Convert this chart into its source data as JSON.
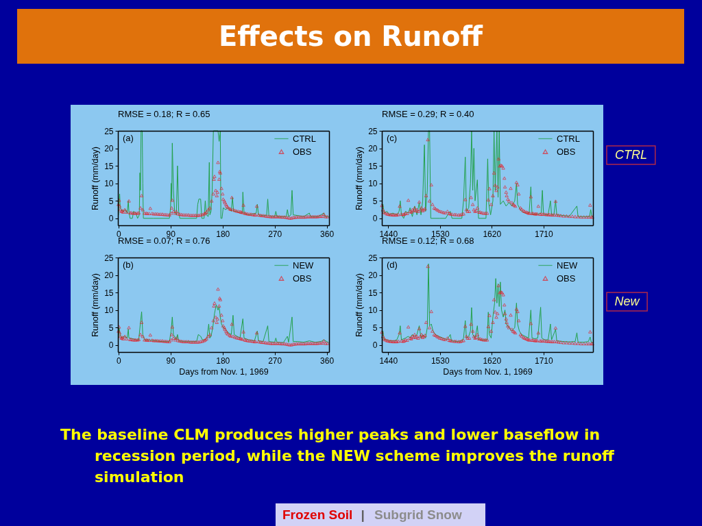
{
  "chart_data": [
    {
      "type": "line",
      "title": "RMSE = 0.18; R = 0.65",
      "ylabel": "Runoff (mm/day)",
      "annotations": [
        "(a)"
      ],
      "xlim": [
        -1,
        364
      ],
      "xticks": [
        0,
        90,
        180,
        270,
        360
      ],
      "ylim": [
        -2,
        25
      ],
      "yticks": [
        0,
        5,
        10,
        15,
        20,
        25
      ],
      "legend": "top right",
      "series": [
        {
          "name": "CTRL",
          "type": "line",
          "color": "#22a04a",
          "x": [
            0,
            1,
            2,
            3,
            5,
            8,
            12,
            15,
            17,
            18,
            20,
            24,
            26,
            30,
            33,
            36,
            37,
            38,
            39,
            41,
            42,
            43,
            60,
            88,
            90,
            91,
            92,
            93,
            95,
            97,
            100,
            102,
            104,
            106,
            135,
            137,
            139,
            142,
            144,
            148,
            150,
            152,
            155,
            157,
            158,
            160,
            162,
            164,
            172,
            174,
            176,
            177,
            179,
            181,
            185,
            190,
            195,
            197,
            199,
            205,
            210,
            214,
            215,
            217,
            225,
            238,
            240,
            242,
            250,
            256,
            258,
            260,
            270,
            272,
            274,
            285,
            290,
            292,
            294,
            298,
            300,
            302,
            310,
            320,
            330,
            332,
            345,
            355,
            357,
            363
          ],
          "values": [
            1,
            5,
            7,
            3,
            2.5,
            2,
            2.5,
            1.5,
            5,
            2,
            0,
            0,
            2,
            1.5,
            0,
            1,
            13,
            8,
            25,
            25,
            10,
            0,
            0,
            0,
            3,
            10,
            5,
            21.5,
            8,
            2,
            1,
            15,
            2,
            0,
            0,
            4,
            5.5,
            5.5,
            0,
            0,
            5,
            1,
            0.5,
            16,
            1,
            2,
            8,
            25,
            25,
            22,
            25,
            0,
            0,
            3,
            2.5,
            3,
            2,
            6,
            2,
            2,
            1.5,
            1.5,
            7.5,
            1.5,
            1,
            1.5,
            4,
            1,
            0.8,
            0.8,
            5.5,
            0.7,
            0.5,
            2,
            0.5,
            0.5,
            0.5,
            2.5,
            0.5,
            1,
            8,
            1,
            0.8,
            0.5,
            1.5,
            0.5,
            0.5,
            1.5,
            0.5,
            0.5
          ]
        },
        {
          "name": "OBS",
          "type": "scatter",
          "marker": "triangle",
          "color": "#e4202a",
          "x": [
            0,
            1,
            2,
            3,
            5,
            7,
            8,
            11,
            14,
            18,
            20,
            22,
            25,
            28,
            30,
            33,
            35,
            38,
            40,
            42,
            45,
            48,
            50,
            53,
            55,
            58,
            61,
            64,
            67,
            70,
            73,
            76,
            79,
            82,
            85,
            88,
            91,
            92,
            93,
            95,
            98,
            100,
            103,
            106,
            109,
            112,
            115,
            118,
            121,
            124,
            127,
            130,
            133,
            136,
            139,
            142,
            145,
            148,
            150,
            152,
            155,
            158,
            161,
            164,
            165,
            166,
            168,
            170,
            171,
            172,
            174,
            175,
            176,
            178,
            180,
            181,
            183,
            184,
            186,
            187,
            189,
            192,
            194,
            196,
            198,
            201,
            204,
            207,
            210,
            212,
            214,
            216,
            218,
            220,
            223,
            226,
            229,
            232,
            235,
            237,
            239,
            242,
            245,
            248,
            251,
            254,
            257,
            260,
            263,
            266,
            269,
            272,
            275,
            278,
            281,
            284,
            287,
            290,
            293,
            296,
            299,
            302,
            305,
            308,
            311,
            314,
            317,
            320,
            323,
            326,
            329,
            332,
            335,
            338,
            341,
            344,
            347,
            350,
            353,
            355,
            358,
            361
          ],
          "values": [
            4,
            5.2,
            3.5,
            2.5,
            2,
            2.2,
            1.8,
            2.5,
            1.8,
            5,
            1.6,
            1.6,
            1.5,
            1.5,
            1.5,
            1.5,
            1.6,
            3,
            6.5,
            2.5,
            1.5,
            1.5,
            1.4,
            1.4,
            2.9,
            1.4,
            1.3,
            1.3,
            1.3,
            1.2,
            1.2,
            1.2,
            1.1,
            1.1,
            1,
            1,
            1.5,
            3,
            5.2,
            2,
            1.5,
            2,
            1.3,
            1.2,
            1.1,
            1,
            1,
            1,
            1,
            0.9,
            0.9,
            0.9,
            0.9,
            0.9,
            0.9,
            1,
            1.1,
            1.3,
            1.5,
            1.8,
            2.5,
            3,
            5,
            7,
            11.2,
            12,
            8,
            6.5,
            7.5,
            16,
            11.2,
            13.4,
            13,
            8.6,
            7,
            5.5,
            5,
            4.5,
            4,
            3.5,
            3.2,
            2.8,
            2.6,
            6,
            2.5,
            2.3,
            2.1,
            2,
            1.9,
            1.8,
            1.7,
            3.8,
            1.5,
            1.4,
            1.3,
            1.2,
            1.2,
            1.1,
            1,
            1,
            3.5,
            1,
            0.9,
            0.8,
            0.8,
            0.7,
            0.6,
            0.6,
            0.5,
            0.5,
            0.5,
            0.5,
            0.5,
            0.5,
            0.4,
            0.4,
            0.4,
            0.3,
            0.2,
            0.1,
            0.1,
            0.3,
            0.3,
            0.4,
            0.4,
            0.4,
            0.4,
            0.4,
            0.4,
            0.5,
            0.5,
            0.5,
            0.5,
            0.5,
            0.5,
            0.5,
            0.6,
            0.6,
            0.6,
            1.2,
            0.5,
            0.5
          ]
        }
      ]
    },
    {
      "type": "line",
      "title": "RMSE = 0.29; R = 0.40",
      "ylabel": "Runoff (mm/day)",
      "annotations": [
        "(c)"
      ],
      "xlim": [
        1429,
        1796
      ],
      "xticks": [
        1440,
        1530,
        1620,
        1710
      ],
      "ylim": [
        -2,
        25
      ],
      "yticks": [
        0,
        5,
        10,
        15,
        20,
        25
      ],
      "legend": "top right",
      "series": [
        {
          "name": "CTRL",
          "type": "line",
          "color": "#22a04a",
          "x": [
            1429,
            1431,
            1433,
            1438,
            1442,
            1448,
            1455,
            1459,
            1461,
            1463,
            1467,
            1470,
            1475,
            1478,
            1482,
            1486,
            1490,
            1494,
            1497,
            1500,
            1503,
            1505,
            1508,
            1510,
            1512,
            1514,
            1530,
            1540,
            1545,
            1548,
            1551,
            1568,
            1571,
            1574,
            1576,
            1580,
            1583,
            1585,
            1587,
            1589,
            1591,
            1595,
            1597,
            1610,
            1613,
            1615,
            1618,
            1622,
            1624,
            1626,
            1629,
            1631,
            1633,
            1635,
            1640,
            1645,
            1650,
            1655,
            1660,
            1663,
            1665,
            1668,
            1672,
            1678,
            1685,
            1688,
            1690,
            1700,
            1706,
            1708,
            1710,
            1718,
            1722,
            1724,
            1728,
            1731,
            1733,
            1745,
            1755,
            1768,
            1770,
            1780,
            1790,
            1792,
            1794,
            1796
          ],
          "values": [
            2,
            4,
            1.5,
            2,
            1,
            1.5,
            1,
            2,
            5,
            1,
            0,
            2,
            1.5,
            3,
            0.5,
            3.5,
            1,
            4.5,
            1,
            5,
            21,
            2,
            8,
            25,
            25,
            0,
            0,
            0,
            1.5,
            2,
            0,
            0,
            5,
            17.5,
            2,
            3,
            10,
            25,
            8,
            20,
            5,
            11,
            0,
            0,
            17,
            4,
            1,
            5,
            25,
            8,
            25,
            6,
            25,
            4,
            5,
            3.5,
            4.5,
            3.5,
            5,
            10,
            4,
            3,
            2,
            1.5,
            1.5,
            9,
            1.2,
            1.2,
            1.5,
            8,
            1.2,
            1,
            5,
            1,
            1,
            5,
            1,
            0.8,
            0.6,
            3.5,
            0.5,
            0.5,
            0.5,
            2.5,
            0.5,
            0.5
          ]
        },
        {
          "name": "OBS",
          "type": "scatter",
          "marker": "triangle",
          "color": "#e4202a",
          "x": [
            1429,
            1431,
            1433,
            1435,
            1438,
            1440,
            1443,
            1445,
            1448,
            1450,
            1453,
            1455,
            1458,
            1460,
            1463,
            1466,
            1468,
            1470,
            1473,
            1475,
            1478,
            1480,
            1482,
            1484,
            1486,
            1488,
            1490,
            1492,
            1494,
            1496,
            1498,
            1500,
            1502,
            1504,
            1506,
            1509,
            1512,
            1515,
            1517,
            1520,
            1522,
            1525,
            1527,
            1530,
            1533,
            1536,
            1539,
            1543,
            1546,
            1548,
            1551,
            1555,
            1558,
            1562,
            1565,
            1568,
            1571,
            1574,
            1576,
            1578,
            1581,
            1584,
            1587,
            1589,
            1591,
            1593,
            1595,
            1598,
            1600,
            1603,
            1606,
            1609,
            1612,
            1614,
            1616,
            1619,
            1622,
            1624,
            1626,
            1628,
            1630,
            1632,
            1634,
            1636,
            1638,
            1640,
            1642,
            1643,
            1645,
            1646,
            1648,
            1650,
            1653,
            1655,
            1657,
            1659,
            1661,
            1663,
            1665,
            1667,
            1670,
            1672,
            1675,
            1677,
            1680,
            1682,
            1684,
            1686,
            1688,
            1690,
            1692,
            1695,
            1697,
            1699,
            1701,
            1704,
            1706,
            1709,
            1712,
            1715,
            1718,
            1720,
            1723,
            1726,
            1729,
            1731,
            1733,
            1736,
            1740,
            1745,
            1750,
            1755,
            1760,
            1765,
            1770,
            1775,
            1780,
            1785,
            1789,
            1791,
            1793,
            1795
          ],
          "values": [
            3.7,
            2.5,
            1.8,
            1.5,
            1.3,
            1.2,
            1.1,
            1.1,
            1,
            1,
            1,
            1,
            1.1,
            3.5,
            1.2,
            1.1,
            1.2,
            1.5,
            1.4,
            5.2,
            2,
            1.8,
            2.5,
            2.2,
            3,
            2.2,
            2.5,
            2,
            4.7,
            2.5,
            3,
            2.2,
            2.5,
            2.8,
            6.5,
            22.5,
            5,
            9.6,
            4,
            3,
            2.8,
            2.5,
            2.3,
            2,
            1.9,
            1.7,
            1.6,
            2,
            1.4,
            1.3,
            1.2,
            1.1,
            1.1,
            1,
            1,
            1.2,
            1.3,
            5.4,
            2.5,
            2,
            2,
            6,
            4,
            2.5,
            2,
            2.2,
            3,
            1.8,
            1.8,
            1.6,
            1.5,
            1.5,
            1.5,
            5.3,
            8.5,
            4,
            6.5,
            13,
            9.5,
            8,
            9,
            17,
            15,
            15.2,
            15,
            14.4,
            11.5,
            9,
            7.5,
            6.5,
            5.5,
            5,
            8.6,
            4.5,
            4,
            3.8,
            3.5,
            10.3,
            9.6,
            7,
            3,
            2.6,
            2.2,
            2,
            1.8,
            1.7,
            1.5,
            1.5,
            6.2,
            1.4,
            1.4,
            1.3,
            1.3,
            1.3,
            3.5,
            1.2,
            1.2,
            1.2,
            1.2,
            1.1,
            1.1,
            1.1,
            1,
            1,
            1,
            4.9,
            1,
            0.9,
            0.8,
            0.7,
            0.7,
            0.6,
            0.6,
            0.5,
            0.5,
            0.4,
            0.4,
            0.4,
            0.4,
            3.8,
            0.4,
            0.4
          ]
        }
      ]
    },
    {
      "type": "line",
      "title": "RMSE = 0.07; R = 0.76",
      "xlabel": "Days from Nov. 1, 1969",
      "ylabel": "Runoff (mm/day)",
      "annotations": [
        "(b)"
      ],
      "xlim": [
        -1,
        364
      ],
      "xticks": [
        0,
        90,
        180,
        270,
        360
      ],
      "ylim": [
        -2,
        25
      ],
      "yticks": [
        0,
        5,
        10,
        15,
        20,
        25
      ],
      "legend": "top right",
      "series": [
        {
          "name": "NEW",
          "type": "line",
          "color": "#22a04a",
          "x": [
            0,
            1,
            3,
            5,
            10,
            15,
            17,
            18,
            25,
            30,
            35,
            38,
            40,
            42,
            45,
            55,
            65,
            75,
            88,
            91,
            93,
            95,
            100,
            102,
            104,
            115,
            125,
            135,
            138,
            142,
            145,
            150,
            153,
            156,
            158,
            160,
            163,
            166,
            169,
            172,
            174,
            176,
            178,
            181,
            185,
            190,
            195,
            198,
            200,
            205,
            210,
            215,
            217,
            225,
            235,
            240,
            242,
            250,
            258,
            260,
            270,
            272,
            274,
            285,
            292,
            294,
            300,
            302,
            310,
            320,
            330,
            340,
            350,
            355,
            363
          ],
          "values": [
            2,
            5,
            3,
            2,
            2.5,
            2,
            4.5,
            2,
            1.8,
            1.5,
            1.5,
            6.5,
            9.5,
            3,
            1.5,
            1.4,
            1.2,
            1,
            1,
            4,
            8,
            3,
            1.5,
            3,
            1.2,
            1,
            1,
            1,
            3,
            2.5,
            1.5,
            1.5,
            2,
            6,
            2,
            2.5,
            5,
            9,
            11.5,
            10,
            11,
            8,
            6,
            5,
            4.5,
            3.5,
            3,
            8.5,
            3,
            2.5,
            2,
            7.5,
            2,
            1.5,
            1.2,
            4,
            1.2,
            1,
            5.5,
            1,
            0.8,
            2,
            0.8,
            0.7,
            2.5,
            0.8,
            8,
            1,
            1,
            0.8,
            1.2,
            0.8,
            1,
            1.5,
            0.7
          ]
        },
        {
          "name": "OBS",
          "type": "scatter",
          "marker": "triangle",
          "color": "#e4202a",
          "x": [
            0,
            1,
            2,
            3,
            5,
            7,
            8,
            11,
            14,
            18,
            20,
            22,
            25,
            28,
            30,
            33,
            35,
            38,
            40,
            42,
            45,
            48,
            50,
            53,
            55,
            58,
            61,
            64,
            67,
            70,
            73,
            76,
            79,
            82,
            85,
            88,
            91,
            92,
            93,
            95,
            98,
            100,
            103,
            106,
            109,
            112,
            115,
            118,
            121,
            124,
            127,
            130,
            133,
            136,
            139,
            142,
            145,
            148,
            150,
            152,
            155,
            158,
            161,
            164,
            165,
            166,
            168,
            170,
            171,
            172,
            174,
            175,
            176,
            178,
            180,
            181,
            183,
            184,
            186,
            187,
            189,
            192,
            194,
            196,
            198,
            201,
            204,
            207,
            210,
            212,
            214,
            216,
            218,
            220,
            223,
            226,
            229,
            232,
            235,
            237,
            239,
            242,
            245,
            248,
            251,
            254,
            257,
            260,
            263,
            266,
            269,
            272,
            275,
            278,
            281,
            284,
            287,
            290,
            293,
            296,
            299,
            302,
            305,
            308,
            311,
            314,
            317,
            320,
            323,
            326,
            329,
            332,
            335,
            338,
            341,
            344,
            347,
            350,
            353,
            355,
            358,
            361
          ],
          "values": [
            4,
            5.2,
            3.5,
            2.5,
            2,
            2.2,
            1.8,
            2.5,
            1.8,
            5,
            1.6,
            1.6,
            1.5,
            1.5,
            1.5,
            1.5,
            1.6,
            3,
            6.5,
            2.5,
            1.5,
            1.5,
            1.4,
            1.4,
            2.9,
            1.4,
            1.3,
            1.3,
            1.3,
            1.2,
            1.2,
            1.2,
            1.1,
            1.1,
            1,
            1,
            1.5,
            3,
            5.2,
            2,
            1.5,
            2,
            1.3,
            1.2,
            1.1,
            1,
            1,
            1,
            1,
            0.9,
            0.9,
            0.9,
            0.9,
            0.9,
            0.9,
            1,
            1.1,
            1.3,
            1.5,
            1.8,
            2.5,
            3,
            5,
            7,
            11.2,
            12,
            8,
            6.5,
            7.5,
            16,
            11.2,
            13.4,
            13,
            8.6,
            7,
            5.5,
            5,
            4.5,
            4,
            3.5,
            3.2,
            2.8,
            2.6,
            6,
            2.5,
            2.3,
            2.1,
            2,
            1.9,
            1.8,
            1.7,
            3.8,
            1.5,
            1.4,
            1.3,
            1.2,
            1.2,
            1.1,
            1,
            1,
            3.5,
            1,
            0.9,
            0.8,
            0.8,
            0.7,
            0.6,
            0.6,
            0.5,
            0.5,
            0.5,
            0.5,
            0.5,
            0.5,
            0.4,
            0.4,
            0.4,
            0.3,
            0.2,
            0.1,
            0.1,
            0.3,
            0.3,
            0.4,
            0.4,
            0.4,
            0.4,
            0.4,
            0.4,
            0.5,
            0.5,
            0.5,
            0.5,
            0.5,
            0.5,
            0.5,
            0.6,
            0.6,
            0.6,
            1.2,
            0.5,
            0.5
          ]
        }
      ]
    },
    {
      "type": "line",
      "title": "RMSE = 0.12; R = 0.68",
      "xlabel": "Days from Nov. 1, 1969",
      "ylabel": "Runoff (mm/day)",
      "annotations": [
        "(d)"
      ],
      "xlim": [
        1429,
        1796
      ],
      "xticks": [
        1440,
        1530,
        1620,
        1710
      ],
      "ylim": [
        -2,
        25
      ],
      "yticks": [
        0,
        5,
        10,
        15,
        20,
        25
      ],
      "legend": "top right",
      "series": [
        {
          "name": "NEW",
          "type": "line",
          "color": "#22a04a",
          "x": [
            1429,
            1431,
            1433,
            1438,
            1442,
            1450,
            1455,
            1459,
            1461,
            1463,
            1470,
            1475,
            1478,
            1482,
            1486,
            1490,
            1494,
            1497,
            1500,
            1505,
            1508,
            1510,
            1512,
            1515,
            1518,
            1522,
            1528,
            1535,
            1542,
            1548,
            1550,
            1560,
            1568,
            1571,
            1574,
            1576,
            1580,
            1583,
            1585,
            1587,
            1591,
            1595,
            1597,
            1605,
            1612,
            1614,
            1616,
            1619,
            1622,
            1625,
            1627,
            1629,
            1631,
            1633,
            1635,
            1637,
            1640,
            1643,
            1645,
            1650,
            1655,
            1660,
            1663,
            1665,
            1668,
            1672,
            1678,
            1684,
            1688,
            1690,
            1695,
            1700,
            1705,
            1707,
            1712,
            1718,
            1722,
            1724,
            1731,
            1733,
            1745,
            1755,
            1765,
            1768,
            1770,
            1780,
            1788,
            1791,
            1793,
            1796
          ],
          "values": [
            2,
            4,
            1.5,
            1.5,
            1.2,
            1.2,
            1.5,
            3,
            5.5,
            1.5,
            2,
            2.5,
            2,
            3,
            2.5,
            3,
            5.5,
            2,
            3,
            2,
            5,
            23.2,
            5.5,
            6,
            4,
            3,
            2.5,
            2,
            1.5,
            3,
            1.2,
            1,
            1.2,
            2,
            7,
            2,
            2.5,
            4,
            10.7,
            3,
            2,
            5.5,
            1.5,
            1.5,
            1.5,
            9.4,
            3,
            2,
            8,
            12,
            19,
            12,
            17.5,
            11,
            18,
            10,
            8,
            10,
            6,
            5,
            4,
            5,
            12,
            6,
            4,
            3,
            2.5,
            2,
            10,
            2,
            1.8,
            2,
            10.8,
            2,
            1.5,
            1.5,
            6,
            1.5,
            4.5,
            1.2,
            1,
            0.9,
            1,
            3.5,
            0.8,
            0.8,
            1,
            2.3,
            0.8,
            0.7
          ]
        },
        {
          "name": "OBS",
          "type": "scatter",
          "marker": "triangle",
          "color": "#e4202a",
          "x": [
            1429,
            1431,
            1433,
            1435,
            1438,
            1440,
            1443,
            1445,
            1448,
            1450,
            1453,
            1455,
            1458,
            1460,
            1463,
            1466,
            1468,
            1470,
            1473,
            1475,
            1478,
            1480,
            1482,
            1484,
            1486,
            1488,
            1490,
            1492,
            1494,
            1496,
            1498,
            1500,
            1502,
            1504,
            1506,
            1509,
            1512,
            1515,
            1517,
            1520,
            1522,
            1525,
            1527,
            1530,
            1533,
            1536,
            1539,
            1543,
            1546,
            1548,
            1551,
            1555,
            1558,
            1562,
            1565,
            1568,
            1571,
            1574,
            1576,
            1578,
            1581,
            1584,
            1587,
            1589,
            1591,
            1593,
            1595,
            1598,
            1600,
            1603,
            1606,
            1609,
            1612,
            1614,
            1616,
            1619,
            1622,
            1624,
            1626,
            1628,
            1630,
            1632,
            1634,
            1636,
            1638,
            1640,
            1642,
            1643,
            1645,
            1646,
            1648,
            1650,
            1653,
            1655,
            1657,
            1659,
            1661,
            1663,
            1665,
            1667,
            1670,
            1672,
            1675,
            1677,
            1680,
            1682,
            1684,
            1686,
            1688,
            1690,
            1692,
            1695,
            1697,
            1699,
            1701,
            1704,
            1706,
            1709,
            1712,
            1715,
            1718,
            1720,
            1723,
            1726,
            1729,
            1731,
            1733,
            1736,
            1740,
            1745,
            1750,
            1755,
            1760,
            1765,
            1770,
            1775,
            1780,
            1785,
            1789,
            1791,
            1793,
            1795
          ],
          "values": [
            3.7,
            2.5,
            1.8,
            1.5,
            1.3,
            1.2,
            1.1,
            1.1,
            1,
            1,
            1,
            1,
            1.1,
            3.5,
            1.2,
            1.1,
            1.2,
            1.5,
            1.4,
            5.2,
            2,
            1.8,
            2.5,
            2.2,
            3,
            2.2,
            2.5,
            2,
            4.7,
            2.5,
            3,
            2.2,
            2.5,
            2.8,
            6.5,
            22.5,
            5,
            9.6,
            4,
            3,
            2.8,
            2.5,
            2.3,
            2,
            1.9,
            1.7,
            1.6,
            2,
            1.4,
            1.3,
            1.2,
            1.1,
            1.1,
            1,
            1,
            1.2,
            1.3,
            5.4,
            2.5,
            2,
            2,
            6,
            4,
            2.5,
            2,
            2.2,
            3,
            1.8,
            1.8,
            1.6,
            1.5,
            1.5,
            1.5,
            5.3,
            8.5,
            4,
            6.5,
            13,
            9.5,
            8,
            9,
            17,
            15,
            15.2,
            15,
            14.4,
            11.5,
            9,
            7.5,
            6.5,
            5.5,
            5,
            8.6,
            4.5,
            4,
            3.8,
            3.5,
            10.3,
            9.6,
            7,
            3,
            2.6,
            2.2,
            2,
            1.8,
            1.7,
            1.5,
            1.5,
            6.2,
            1.4,
            1.4,
            1.3,
            1.3,
            1.3,
            3.5,
            1.2,
            1.2,
            1.2,
            1.2,
            1.1,
            1.1,
            1.1,
            1,
            1,
            1,
            4.9,
            1,
            0.9,
            0.8,
            0.7,
            0.7,
            0.6,
            0.6,
            0.5,
            0.5,
            0.4,
            0.4,
            0.4,
            0.4,
            3.8,
            0.4,
            0.4
          ]
        }
      ]
    },
    {
      "type": "other",
      "title": "Effects on Runoff",
      "annotations": [
        "CTRL",
        "New",
        "The baseline CLM produces higher peaks and lower baseflow in recession period, while the NEW scheme improves the runoff simulation",
        "Frozen Soil",
        "|",
        "Subgrid Snow"
      ]
    }
  ]
}
